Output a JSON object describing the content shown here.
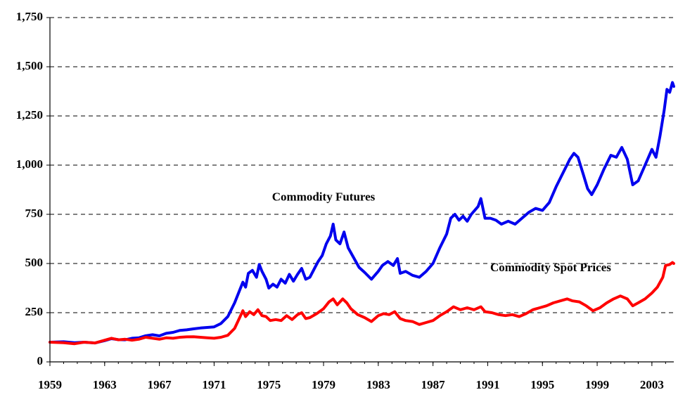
{
  "chart_data": {
    "type": "line",
    "title": "",
    "xlabel": "",
    "ylabel": "",
    "xlim": [
      1959,
      2004.6
    ],
    "ylim": [
      0,
      1750
    ],
    "grid": "horizontal-dashed",
    "yticks": [
      0,
      250,
      500,
      750,
      1000,
      1250,
      1500,
      1750
    ],
    "ytick_labels": [
      "0",
      "250",
      "500",
      "750",
      "1,000",
      "1,250",
      "1,500",
      "1,750"
    ],
    "xticks": [
      1959,
      1963,
      1967,
      1971,
      1975,
      1979,
      1983,
      1987,
      1991,
      1995,
      1999,
      2003
    ],
    "xtick_labels": [
      "1959",
      "1963",
      "1967",
      "1971",
      "1975",
      "1979",
      "1983",
      "1987",
      "1991",
      "1995",
      "1999",
      "2003"
    ],
    "series": [
      {
        "name": "Commodity Futures",
        "color": "#0000ee",
        "points": [
          [
            1959.0,
            100
          ],
          [
            1960.0,
            102
          ],
          [
            1960.8,
            97
          ],
          [
            1961.5,
            100
          ],
          [
            1962.3,
            96
          ],
          [
            1963.0,
            108
          ],
          [
            1963.5,
            118
          ],
          [
            1964.0,
            113
          ],
          [
            1964.5,
            112
          ],
          [
            1965.0,
            120
          ],
          [
            1965.5,
            122
          ],
          [
            1966.0,
            133
          ],
          [
            1966.5,
            138
          ],
          [
            1967.0,
            132
          ],
          [
            1967.5,
            145
          ],
          [
            1968.0,
            150
          ],
          [
            1968.5,
            160
          ],
          [
            1969.0,
            163
          ],
          [
            1969.5,
            168
          ],
          [
            1970.0,
            172
          ],
          [
            1970.5,
            175
          ],
          [
            1971.0,
            178
          ],
          [
            1971.5,
            195
          ],
          [
            1972.0,
            230
          ],
          [
            1972.5,
            300
          ],
          [
            1972.9,
            370
          ],
          [
            1973.1,
            405
          ],
          [
            1973.3,
            380
          ],
          [
            1973.5,
            450
          ],
          [
            1973.8,
            465
          ],
          [
            1974.1,
            430
          ],
          [
            1974.3,
            495
          ],
          [
            1974.5,
            460
          ],
          [
            1974.8,
            420
          ],
          [
            1975.0,
            375
          ],
          [
            1975.3,
            395
          ],
          [
            1975.6,
            380
          ],
          [
            1975.9,
            420
          ],
          [
            1976.2,
            400
          ],
          [
            1976.5,
            445
          ],
          [
            1976.8,
            410
          ],
          [
            1977.1,
            445
          ],
          [
            1977.4,
            475
          ],
          [
            1977.7,
            420
          ],
          [
            1978.0,
            430
          ],
          [
            1978.3,
            470
          ],
          [
            1978.6,
            510
          ],
          [
            1978.9,
            540
          ],
          [
            1979.2,
            600
          ],
          [
            1979.5,
            640
          ],
          [
            1979.7,
            700
          ],
          [
            1979.9,
            620
          ],
          [
            1980.2,
            600
          ],
          [
            1980.5,
            660
          ],
          [
            1980.8,
            580
          ],
          [
            1981.2,
            530
          ],
          [
            1981.6,
            480
          ],
          [
            1982.0,
            455
          ],
          [
            1982.5,
            420
          ],
          [
            1983.0,
            460
          ],
          [
            1983.3,
            490
          ],
          [
            1983.7,
            510
          ],
          [
            1984.1,
            490
          ],
          [
            1984.4,
            525
          ],
          [
            1984.6,
            450
          ],
          [
            1985.0,
            460
          ],
          [
            1985.5,
            440
          ],
          [
            1986.0,
            430
          ],
          [
            1986.5,
            460
          ],
          [
            1987.0,
            500
          ],
          [
            1987.5,
            580
          ],
          [
            1988.0,
            650
          ],
          [
            1988.3,
            730
          ],
          [
            1988.6,
            750
          ],
          [
            1988.9,
            720
          ],
          [
            1989.2,
            740
          ],
          [
            1989.5,
            715
          ],
          [
            1989.8,
            750
          ],
          [
            1990.3,
            790
          ],
          [
            1990.5,
            830
          ],
          [
            1990.8,
            730
          ],
          [
            1991.2,
            730
          ],
          [
            1991.6,
            720
          ],
          [
            1992.0,
            700
          ],
          [
            1992.5,
            715
          ],
          [
            1993.0,
            700
          ],
          [
            1993.5,
            730
          ],
          [
            1994.0,
            760
          ],
          [
            1994.5,
            780
          ],
          [
            1995.0,
            770
          ],
          [
            1995.5,
            810
          ],
          [
            1996.0,
            890
          ],
          [
            1996.5,
            960
          ],
          [
            1997.0,
            1030
          ],
          [
            1997.3,
            1060
          ],
          [
            1997.6,
            1040
          ],
          [
            1998.0,
            950
          ],
          [
            1998.3,
            880
          ],
          [
            1998.6,
            850
          ],
          [
            1999.0,
            900
          ],
          [
            1999.5,
            980
          ],
          [
            2000.0,
            1050
          ],
          [
            2000.4,
            1040
          ],
          [
            2000.8,
            1090
          ],
          [
            2001.2,
            1030
          ],
          [
            2001.6,
            900
          ],
          [
            2002.0,
            920
          ],
          [
            2002.5,
            1000
          ],
          [
            2003.0,
            1080
          ],
          [
            2003.3,
            1040
          ],
          [
            2003.6,
            1150
          ],
          [
            2003.9,
            1280
          ],
          [
            2004.1,
            1385
          ],
          [
            2004.3,
            1370
          ],
          [
            2004.5,
            1420
          ],
          [
            2004.6,
            1400
          ]
        ]
      },
      {
        "name": "Commodity Spot Prices",
        "color": "#ff0000",
        "points": [
          [
            1959.0,
            100
          ],
          [
            1960.0,
            97
          ],
          [
            1960.8,
            92
          ],
          [
            1961.5,
            100
          ],
          [
            1962.3,
            96
          ],
          [
            1963.0,
            110
          ],
          [
            1963.5,
            120
          ],
          [
            1964.0,
            112
          ],
          [
            1964.5,
            115
          ],
          [
            1965.0,
            110
          ],
          [
            1965.5,
            115
          ],
          [
            1966.0,
            125
          ],
          [
            1966.5,
            120
          ],
          [
            1967.0,
            115
          ],
          [
            1967.5,
            122
          ],
          [
            1968.0,
            120
          ],
          [
            1968.5,
            125
          ],
          [
            1969.0,
            127
          ],
          [
            1969.5,
            128
          ],
          [
            1970.0,
            125
          ],
          [
            1970.5,
            122
          ],
          [
            1971.0,
            120
          ],
          [
            1971.5,
            125
          ],
          [
            1972.0,
            135
          ],
          [
            1972.5,
            170
          ],
          [
            1972.9,
            230
          ],
          [
            1973.1,
            260
          ],
          [
            1973.3,
            230
          ],
          [
            1973.6,
            255
          ],
          [
            1973.9,
            240
          ],
          [
            1974.2,
            265
          ],
          [
            1974.5,
            235
          ],
          [
            1974.8,
            230
          ],
          [
            1975.1,
            210
          ],
          [
            1975.5,
            215
          ],
          [
            1975.9,
            210
          ],
          [
            1976.3,
            235
          ],
          [
            1976.7,
            215
          ],
          [
            1977.1,
            240
          ],
          [
            1977.4,
            250
          ],
          [
            1977.7,
            220
          ],
          [
            1978.0,
            225
          ],
          [
            1978.5,
            245
          ],
          [
            1979.0,
            270
          ],
          [
            1979.4,
            305
          ],
          [
            1979.7,
            320
          ],
          [
            1980.0,
            290
          ],
          [
            1980.4,
            320
          ],
          [
            1980.7,
            300
          ],
          [
            1981.0,
            270
          ],
          [
            1981.5,
            240
          ],
          [
            1982.0,
            225
          ],
          [
            1982.5,
            205
          ],
          [
            1983.0,
            235
          ],
          [
            1983.4,
            245
          ],
          [
            1983.8,
            240
          ],
          [
            1984.2,
            255
          ],
          [
            1984.6,
            220
          ],
          [
            1985.0,
            210
          ],
          [
            1985.5,
            205
          ],
          [
            1986.0,
            190
          ],
          [
            1986.5,
            200
          ],
          [
            1987.0,
            210
          ],
          [
            1987.5,
            235
          ],
          [
            1988.0,
            255
          ],
          [
            1988.5,
            280
          ],
          [
            1989.0,
            265
          ],
          [
            1989.5,
            275
          ],
          [
            1990.0,
            265
          ],
          [
            1990.5,
            280
          ],
          [
            1990.8,
            255
          ],
          [
            1991.3,
            250
          ],
          [
            1991.8,
            240
          ],
          [
            1992.3,
            235
          ],
          [
            1992.8,
            240
          ],
          [
            1993.3,
            230
          ],
          [
            1993.8,
            245
          ],
          [
            1994.3,
            265
          ],
          [
            1994.8,
            275
          ],
          [
            1995.3,
            285
          ],
          [
            1995.8,
            300
          ],
          [
            1996.3,
            310
          ],
          [
            1996.8,
            320
          ],
          [
            1997.2,
            310
          ],
          [
            1997.7,
            305
          ],
          [
            1998.2,
            285
          ],
          [
            1998.7,
            260
          ],
          [
            1999.2,
            275
          ],
          [
            1999.7,
            300
          ],
          [
            2000.2,
            320
          ],
          [
            2000.7,
            335
          ],
          [
            2001.2,
            320
          ],
          [
            2001.6,
            285
          ],
          [
            2002.0,
            300
          ],
          [
            2002.5,
            320
          ],
          [
            2003.0,
            350
          ],
          [
            2003.4,
            380
          ],
          [
            2003.8,
            430
          ],
          [
            2004.0,
            490
          ],
          [
            2004.3,
            495
          ],
          [
            2004.5,
            505
          ],
          [
            2004.6,
            500
          ]
        ]
      }
    ],
    "annotations": [
      {
        "text": "Commodity Futures",
        "x": 1979,
        "y": 820,
        "series": "Commodity Futures"
      },
      {
        "text": "Commodity Spot Prices",
        "x": 1995.6,
        "y": 460,
        "series": "Commodity Spot Prices"
      }
    ]
  }
}
